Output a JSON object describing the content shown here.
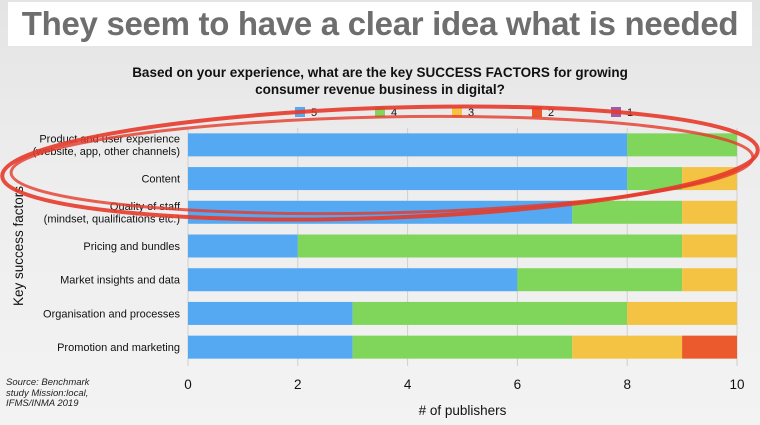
{
  "slide": {
    "headline": "They seem to have a clear idea what is needed",
    "source_lines": [
      "Source: Benchmark",
      "study Mission:local,",
      "IFMS/INMA 2019"
    ]
  },
  "chart_data": {
    "type": "bar",
    "orientation": "horizontal",
    "stacked": true,
    "title_lines": [
      "Based on your experience, what are the key SUCCESS FACTORS for growing",
      "consumer revenue business in digital?"
    ],
    "xlabel": "# of publishers",
    "ylabel": "Key success factors",
    "xlim": [
      0,
      10
    ],
    "xticks": [
      0,
      2,
      4,
      6,
      8,
      10
    ],
    "grid": true,
    "legend_position": "top",
    "categories": [
      [
        "Product and user experience",
        "(website, app, other channels)"
      ],
      [
        "Content"
      ],
      [
        "Quality of staff",
        "(mindset, qualifications etc.)"
      ],
      [
        "Pricing and bundles"
      ],
      [
        "Market insights and data"
      ],
      [
        "Organisation and processes"
      ],
      [
        "Promotion and marketing"
      ]
    ],
    "series": [
      {
        "name": "5",
        "color": "#55a9f2",
        "values": [
          8,
          8,
          7,
          2,
          6,
          3,
          3
        ]
      },
      {
        "name": "4",
        "color": "#7fd65a",
        "values": [
          2,
          1,
          2,
          7,
          3,
          5,
          4
        ]
      },
      {
        "name": "3",
        "color": "#f5c343",
        "values": [
          0,
          1,
          1,
          1,
          1,
          2,
          2
        ]
      },
      {
        "name": "2",
        "color": "#ea5a2c",
        "values": [
          0,
          0,
          0,
          0,
          0,
          0,
          1
        ]
      },
      {
        "name": "1",
        "color": "#a25aa6",
        "values": [
          0,
          0,
          0,
          0,
          0,
          0,
          0
        ]
      }
    ],
    "annotation": {
      "shape": "hand-drawn ellipse",
      "color": "#e53a2a",
      "highlights": [
        "Product and user experience",
        "Content"
      ]
    }
  }
}
